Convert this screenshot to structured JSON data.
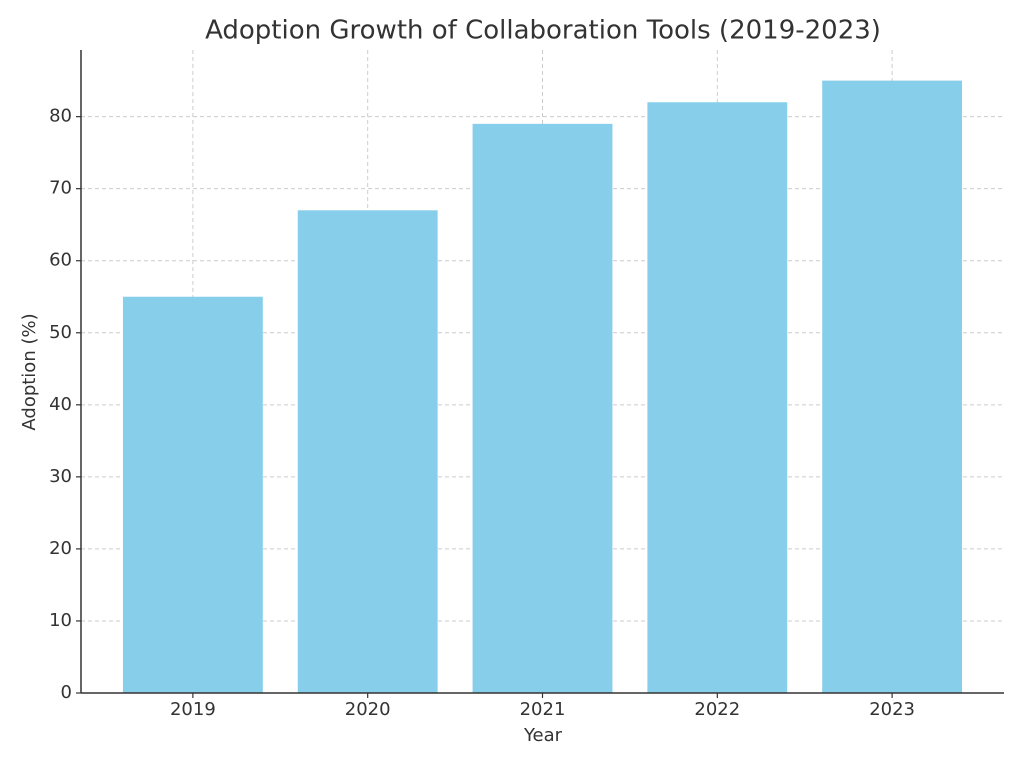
{
  "chart_data": {
    "type": "bar",
    "title": "Adoption Growth of Collaboration Tools (2019-2023)",
    "x_label": "Year",
    "y_label": "Adoption (%)",
    "categories": [
      "2019",
      "2020",
      "2021",
      "2022",
      "2023"
    ],
    "values": [
      55,
      67,
      79,
      82,
      85
    ],
    "color": "#87ceeb",
    "ylim": [
      0,
      89.25
    ],
    "yticks": [
      0,
      10,
      20,
      30,
      40,
      50,
      60,
      70,
      80
    ],
    "grid": true
  }
}
